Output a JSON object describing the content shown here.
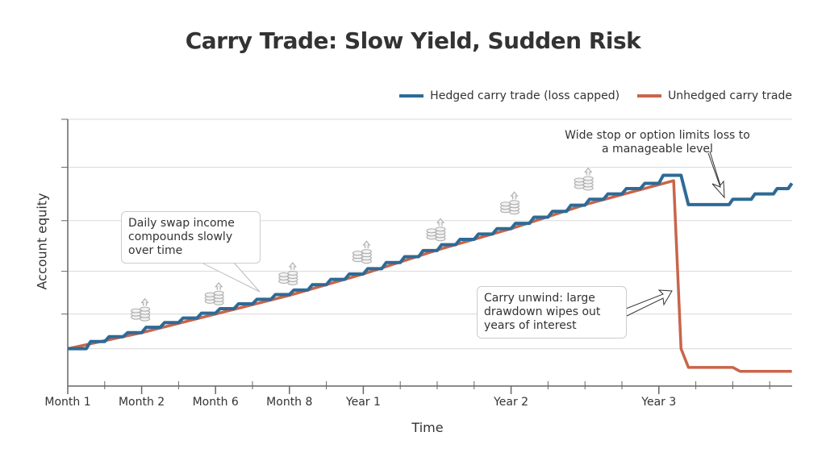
{
  "chart_data": {
    "type": "line",
    "title": "Carry Trade: Slow Yield, Sudden Risk",
    "xlabel": "Time",
    "ylabel": "Account equity",
    "xlim": [
      0,
      19.6
    ],
    "ylim": [
      0,
      100
    ],
    "grid": true,
    "gridlines_y": [
      14,
      27,
      43,
      62,
      82,
      100
    ],
    "legend_position": "top-right",
    "x_ticks": [
      {
        "x": 0,
        "label": "Month 1"
      },
      {
        "x": 2,
        "label": "Month 2"
      },
      {
        "x": 4,
        "label": "Month 6"
      },
      {
        "x": 6,
        "label": "Month 8"
      },
      {
        "x": 8,
        "label": "Year 1"
      },
      {
        "x": 12,
        "label": "Year 2"
      },
      {
        "x": 16,
        "label": "Year 3"
      }
    ],
    "minor_ticks": [
      1,
      3,
      5,
      7,
      9,
      10,
      11,
      13,
      14,
      15,
      17,
      18,
      19
    ],
    "series": [
      {
        "name": "Hedged carry trade (loss capped)",
        "color": "#2e6a96",
        "step_start": 0,
        "step_width": 0.5,
        "step_levels": [
          14,
          16.7,
          18.5,
          20,
          22,
          23.8,
          25.5,
          27.3,
          29,
          30.8,
          32.5,
          34.3,
          36,
          38,
          40,
          42,
          44,
          46.3,
          48.5,
          50.8,
          53,
          55,
          57,
          59,
          61,
          63.3,
          65.5,
          67.8,
          70,
          72,
          74,
          76
        ],
        "tail": [
          [
            16,
            79
          ],
          [
            16.6,
            79
          ],
          [
            16.8,
            68
          ],
          [
            17.9,
            68
          ],
          [
            18.0,
            70
          ],
          [
            18.5,
            70
          ],
          [
            18.6,
            72
          ],
          [
            19.1,
            72
          ],
          [
            19.2,
            74
          ],
          [
            19.5,
            74
          ],
          [
            19.6,
            76
          ]
        ]
      },
      {
        "name": "Unhedged carry trade",
        "color": "#c8654a",
        "points": [
          [
            0,
            14
          ],
          [
            2,
            20
          ],
          [
            4,
            27
          ],
          [
            6,
            34
          ],
          [
            8,
            42
          ],
          [
            10,
            51
          ],
          [
            12,
            59
          ],
          [
            14,
            68
          ],
          [
            16.4,
            77
          ],
          [
            16.6,
            14
          ],
          [
            16.8,
            7
          ],
          [
            18,
            7
          ],
          [
            18.2,
            5.5
          ],
          [
            19.6,
            5.5
          ]
        ]
      }
    ],
    "coin_markers": [
      [
        2,
        27
      ],
      [
        4,
        33
      ],
      [
        6,
        40.5
      ],
      [
        8,
        48.6
      ],
      [
        10,
        57
      ],
      [
        12,
        67
      ],
      [
        14,
        76
      ]
    ],
    "annotations": [
      "Daily swap income compounds slowly over time",
      "Wide stop or option limits loss to a manageable level",
      "Carry unwind: large drawdown wipes out years of interest"
    ]
  }
}
